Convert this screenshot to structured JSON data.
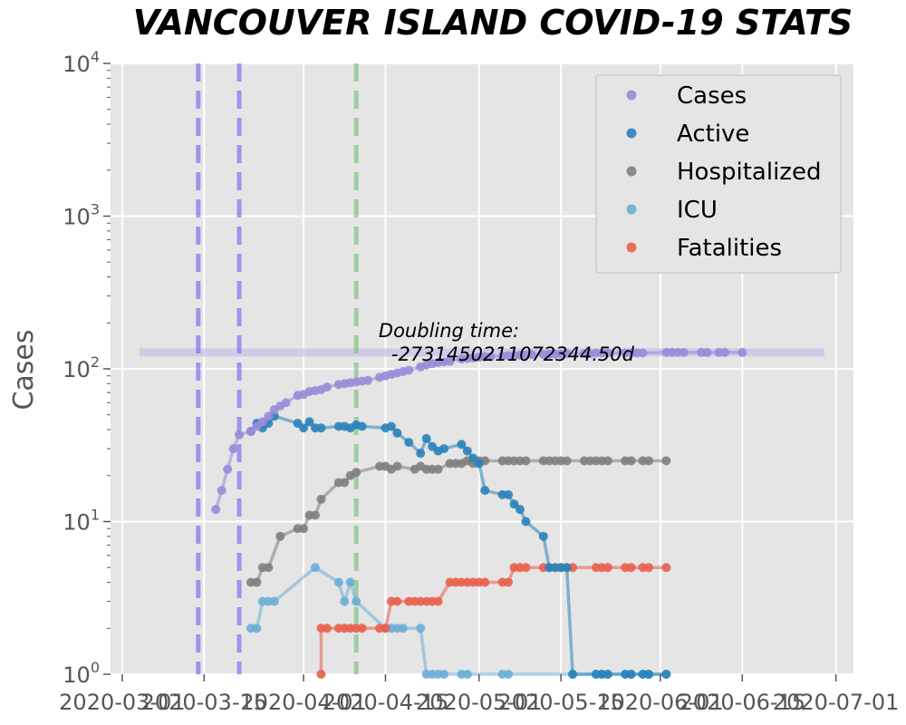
{
  "chart_data": {
    "type": "line",
    "title": "VANCOUVER ISLAND COVID-19 STATS",
    "ylabel": "Cases",
    "xlabel": "",
    "y_scale": "log",
    "ylim": [
      1,
      10000
    ],
    "xlim": [
      "2020-02-28",
      "2020-07-04"
    ],
    "y_ticks": [
      {
        "value": 1,
        "base": "10",
        "exp": "0"
      },
      {
        "value": 10,
        "base": "10",
        "exp": "1"
      },
      {
        "value": 100,
        "base": "10",
        "exp": "2"
      },
      {
        "value": 1000,
        "base": "10",
        "exp": "3"
      },
      {
        "value": 10000,
        "base": "10",
        "exp": "4"
      }
    ],
    "x_ticks": [
      "2020-03-01",
      "2020-03-15",
      "2020-04-01",
      "2020-04-15",
      "2020-05-01",
      "2020-05-15",
      "2020-06-01",
      "2020-06-15",
      "2020-07-01"
    ],
    "grid": true,
    "legend_position": "top-right",
    "vertical_lines": [
      {
        "x": "2020-03-14",
        "color": "#7b68ee"
      },
      {
        "x": "2020-03-21",
        "color": "#7b68ee"
      },
      {
        "x": "2020-04-10",
        "color": "#7bc17b"
      }
    ],
    "horizontal_band": {
      "y": 128,
      "color": "#c8c3e8"
    },
    "annotation": {
      "line1": "Doubling time:",
      "line2": "-2731450211072344.50d",
      "x": "2020-04-16",
      "y": 180
    },
    "series": [
      {
        "name": "Cases",
        "color": "#9b8bd8",
        "points": [
          [
            "2020-03-17",
            12
          ],
          [
            "2020-03-18",
            16
          ],
          [
            "2020-03-19",
            22
          ],
          [
            "2020-03-20",
            30
          ],
          [
            "2020-03-21",
            37
          ],
          [
            "2020-03-23",
            39
          ],
          [
            "2020-03-24",
            42
          ],
          [
            "2020-03-25",
            45
          ],
          [
            "2020-03-26",
            49
          ],
          [
            "2020-03-27",
            54
          ],
          [
            "2020-03-28",
            57
          ],
          [
            "2020-03-29",
            60
          ],
          [
            "2020-03-31",
            67
          ],
          [
            "2020-04-01",
            68
          ],
          [
            "2020-04-02",
            71
          ],
          [
            "2020-04-03",
            72
          ],
          [
            "2020-04-04",
            73
          ],
          [
            "2020-04-05",
            76
          ],
          [
            "2020-04-07",
            79
          ],
          [
            "2020-04-08",
            80
          ],
          [
            "2020-04-09",
            81
          ],
          [
            "2020-04-10",
            82
          ],
          [
            "2020-04-11",
            83
          ],
          [
            "2020-04-12",
            84
          ],
          [
            "2020-04-14",
            88
          ],
          [
            "2020-04-15",
            90
          ],
          [
            "2020-04-16",
            92
          ],
          [
            "2020-04-17",
            94
          ],
          [
            "2020-04-18",
            96
          ],
          [
            "2020-04-19",
            98
          ],
          [
            "2020-04-21",
            103
          ],
          [
            "2020-04-22",
            106
          ],
          [
            "2020-04-23",
            108
          ],
          [
            "2020-04-24",
            110
          ],
          [
            "2020-04-25",
            111
          ],
          [
            "2020-04-26",
            112
          ],
          [
            "2020-04-28",
            116
          ],
          [
            "2020-04-29",
            117
          ],
          [
            "2020-04-30",
            118
          ],
          [
            "2020-05-01",
            119
          ],
          [
            "2020-05-02",
            120
          ],
          [
            "2020-05-03",
            120
          ],
          [
            "2020-05-05",
            121
          ],
          [
            "2020-05-06",
            122
          ],
          [
            "2020-05-07",
            122
          ],
          [
            "2020-05-08",
            123
          ],
          [
            "2020-05-09",
            123
          ],
          [
            "2020-05-10",
            124
          ],
          [
            "2020-05-12",
            124
          ],
          [
            "2020-05-13",
            125
          ],
          [
            "2020-05-14",
            125
          ],
          [
            "2020-05-15",
            125
          ],
          [
            "2020-05-16",
            126
          ],
          [
            "2020-05-19",
            126
          ],
          [
            "2020-05-20",
            126
          ],
          [
            "2020-05-21",
            127
          ],
          [
            "2020-05-22",
            127
          ],
          [
            "2020-05-23",
            127
          ],
          [
            "2020-05-26",
            127
          ],
          [
            "2020-05-27",
            127
          ],
          [
            "2020-05-28",
            127
          ],
          [
            "2020-05-29",
            127
          ],
          [
            "2020-06-02",
            128
          ],
          [
            "2020-06-03",
            128
          ],
          [
            "2020-06-04",
            128
          ],
          [
            "2020-06-05",
            128
          ],
          [
            "2020-06-08",
            128
          ],
          [
            "2020-06-09",
            128
          ],
          [
            "2020-06-11",
            128
          ],
          [
            "2020-06-12",
            128
          ],
          [
            "2020-06-15",
            128
          ]
        ]
      },
      {
        "name": "Active",
        "color": "#2b83ba",
        "points": [
          [
            "2020-03-23",
            39
          ],
          [
            "2020-03-24",
            44
          ],
          [
            "2020-03-25",
            41
          ],
          [
            "2020-03-26",
            44
          ],
          [
            "2020-03-27",
            49
          ],
          [
            "2020-03-31",
            44
          ],
          [
            "2020-04-01",
            41
          ],
          [
            "2020-04-02",
            45
          ],
          [
            "2020-04-03",
            41
          ],
          [
            "2020-04-04",
            41
          ],
          [
            "2020-04-07",
            42
          ],
          [
            "2020-04-08",
            42
          ],
          [
            "2020-04-09",
            41
          ],
          [
            "2020-04-10",
            43
          ],
          [
            "2020-04-11",
            42
          ],
          [
            "2020-04-15",
            41
          ],
          [
            "2020-04-16",
            42
          ],
          [
            "2020-04-17",
            38
          ],
          [
            "2020-04-19",
            33
          ],
          [
            "2020-04-21",
            28
          ],
          [
            "2020-04-22",
            35
          ],
          [
            "2020-04-23",
            31
          ],
          [
            "2020-04-24",
            29
          ],
          [
            "2020-04-25",
            30
          ],
          [
            "2020-04-28",
            32
          ],
          [
            "2020-04-29",
            29
          ],
          [
            "2020-04-30",
            26
          ],
          [
            "2020-05-01",
            24
          ],
          [
            "2020-05-02",
            16
          ],
          [
            "2020-05-05",
            15
          ],
          [
            "2020-05-06",
            15
          ],
          [
            "2020-05-07",
            13
          ],
          [
            "2020-05-08",
            12
          ],
          [
            "2020-05-09",
            10
          ],
          [
            "2020-05-12",
            8
          ],
          [
            "2020-05-13",
            5
          ],
          [
            "2020-05-14",
            5
          ],
          [
            "2020-05-15",
            5
          ],
          [
            "2020-05-16",
            5
          ],
          [
            "2020-05-17",
            1
          ],
          [
            "2020-05-21",
            1
          ],
          [
            "2020-05-22",
            1
          ],
          [
            "2020-05-23",
            1
          ],
          [
            "2020-05-26",
            1
          ],
          [
            "2020-05-27",
            1
          ],
          [
            "2020-05-29",
            1
          ],
          [
            "2020-05-30",
            1
          ],
          [
            "2020-06-02",
            1
          ]
        ]
      },
      {
        "name": "Hospitalized",
        "color": "#808080",
        "points": [
          [
            "2020-03-23",
            4
          ],
          [
            "2020-03-24",
            4
          ],
          [
            "2020-03-25",
            5
          ],
          [
            "2020-03-26",
            5
          ],
          [
            "2020-03-28",
            8
          ],
          [
            "2020-03-31",
            9
          ],
          [
            "2020-04-01",
            9
          ],
          [
            "2020-04-02",
            11
          ],
          [
            "2020-04-03",
            11
          ],
          [
            "2020-04-04",
            14
          ],
          [
            "2020-04-07",
            18
          ],
          [
            "2020-04-08",
            18
          ],
          [
            "2020-04-09",
            20
          ],
          [
            "2020-04-10",
            21
          ],
          [
            "2020-04-14",
            23
          ],
          [
            "2020-04-15",
            23
          ],
          [
            "2020-04-16",
            22
          ],
          [
            "2020-04-17",
            23
          ],
          [
            "2020-04-20",
            22
          ],
          [
            "2020-04-21",
            23
          ],
          [
            "2020-04-22",
            22
          ],
          [
            "2020-04-23",
            22
          ],
          [
            "2020-04-24",
            22
          ],
          [
            "2020-04-26",
            24
          ],
          [
            "2020-04-27",
            24
          ],
          [
            "2020-04-28",
            24
          ],
          [
            "2020-04-29",
            25
          ],
          [
            "2020-04-30",
            24
          ],
          [
            "2020-05-01",
            25
          ],
          [
            "2020-05-02",
            25
          ],
          [
            "2020-05-05",
            25
          ],
          [
            "2020-05-06",
            25
          ],
          [
            "2020-05-07",
            25
          ],
          [
            "2020-05-08",
            25
          ],
          [
            "2020-05-09",
            25
          ],
          [
            "2020-05-12",
            25
          ],
          [
            "2020-05-13",
            25
          ],
          [
            "2020-05-14",
            25
          ],
          [
            "2020-05-15",
            25
          ],
          [
            "2020-05-16",
            25
          ],
          [
            "2020-05-19",
            25
          ],
          [
            "2020-05-20",
            25
          ],
          [
            "2020-05-21",
            25
          ],
          [
            "2020-05-22",
            25
          ],
          [
            "2020-05-23",
            25
          ],
          [
            "2020-05-26",
            25
          ],
          [
            "2020-05-27",
            25
          ],
          [
            "2020-05-29",
            25
          ],
          [
            "2020-05-30",
            25
          ],
          [
            "2020-06-02",
            25
          ]
        ]
      },
      {
        "name": "ICU",
        "color": "#6baed6",
        "points": [
          [
            "2020-03-23",
            2
          ],
          [
            "2020-03-24",
            2
          ],
          [
            "2020-03-25",
            3
          ],
          [
            "2020-03-26",
            3
          ],
          [
            "2020-03-27",
            3
          ],
          [
            "2020-04-03",
            5
          ],
          [
            "2020-04-07",
            4
          ],
          [
            "2020-04-08",
            3
          ],
          [
            "2020-04-09",
            4
          ],
          [
            "2020-04-10",
            3
          ],
          [
            "2020-04-15",
            2
          ],
          [
            "2020-04-16",
            2
          ],
          [
            "2020-04-17",
            2
          ],
          [
            "2020-04-18",
            2
          ],
          [
            "2020-04-21",
            2
          ],
          [
            "2020-04-22",
            1
          ],
          [
            "2020-04-23",
            1
          ],
          [
            "2020-04-24",
            1
          ],
          [
            "2020-04-25",
            1
          ],
          [
            "2020-04-28",
            1
          ],
          [
            "2020-04-29",
            1
          ],
          [
            "2020-05-05",
            1
          ],
          [
            "2020-05-06",
            1
          ],
          [
            "2020-05-17",
            1
          ],
          [
            "2020-05-21",
            1
          ],
          [
            "2020-05-22",
            1
          ],
          [
            "2020-05-23",
            1
          ],
          [
            "2020-05-26",
            1
          ],
          [
            "2020-05-27",
            1
          ],
          [
            "2020-05-29",
            1
          ],
          [
            "2020-05-30",
            1
          ],
          [
            "2020-06-02",
            1
          ]
        ]
      },
      {
        "name": "Fatalities",
        "color": "#e8604c",
        "points": [
          [
            "2020-04-04",
            1
          ],
          [
            "2020-04-04",
            2
          ],
          [
            "2020-04-05",
            2
          ],
          [
            "2020-04-07",
            2
          ],
          [
            "2020-04-08",
            2
          ],
          [
            "2020-04-09",
            2
          ],
          [
            "2020-04-10",
            2
          ],
          [
            "2020-04-11",
            2
          ],
          [
            "2020-04-14",
            2
          ],
          [
            "2020-04-15",
            2
          ],
          [
            "2020-04-16",
            3
          ],
          [
            "2020-04-17",
            3
          ],
          [
            "2020-04-19",
            3
          ],
          [
            "2020-04-20",
            3
          ],
          [
            "2020-04-21",
            3
          ],
          [
            "2020-04-22",
            3
          ],
          [
            "2020-04-23",
            3
          ],
          [
            "2020-04-24",
            3
          ],
          [
            "2020-04-26",
            4
          ],
          [
            "2020-04-27",
            4
          ],
          [
            "2020-04-28",
            4
          ],
          [
            "2020-04-29",
            4
          ],
          [
            "2020-04-30",
            4
          ],
          [
            "2020-05-01",
            4
          ],
          [
            "2020-05-02",
            4
          ],
          [
            "2020-05-05",
            4
          ],
          [
            "2020-05-06",
            4
          ],
          [
            "2020-05-07",
            5
          ],
          [
            "2020-05-08",
            5
          ],
          [
            "2020-05-09",
            5
          ],
          [
            "2020-05-12",
            5
          ],
          [
            "2020-05-13",
            5
          ],
          [
            "2020-05-14",
            5
          ],
          [
            "2020-05-15",
            5
          ],
          [
            "2020-05-16",
            5
          ],
          [
            "2020-05-17",
            5
          ],
          [
            "2020-05-21",
            5
          ],
          [
            "2020-05-22",
            5
          ],
          [
            "2020-05-23",
            5
          ],
          [
            "2020-05-26",
            5
          ],
          [
            "2020-05-27",
            5
          ],
          [
            "2020-05-29",
            5
          ],
          [
            "2020-05-30",
            5
          ],
          [
            "2020-06-02",
            5
          ]
        ]
      }
    ]
  }
}
